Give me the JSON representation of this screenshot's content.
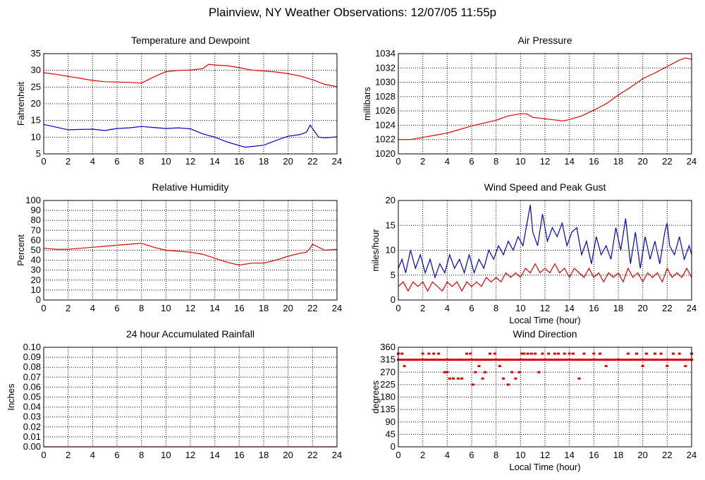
{
  "title": "Plainview, NY Weather Observations: 12/07/05 11:55p",
  "colors": {
    "red": "#e00000",
    "blue": "#0000c8"
  },
  "chart_data": [
    {
      "id": "temp",
      "type": "line",
      "title": "Temperature and Dewpoint",
      "xlabel": "",
      "ylabel": "Fahrenheit",
      "xlim": [
        0,
        24
      ],
      "ylim": [
        5,
        35
      ],
      "xticks": [
        "0",
        "2",
        "4",
        "6",
        "8",
        "10",
        "12",
        "14",
        "16",
        "18",
        "20",
        "22",
        "24"
      ],
      "yticks": [
        "35",
        "30",
        "25",
        "20",
        "15",
        "10",
        "5"
      ],
      "grid": true,
      "series": [
        {
          "color": "red",
          "x": [
            0,
            1,
            2,
            3,
            4,
            5,
            6,
            7,
            8,
            9,
            10,
            11,
            12,
            13,
            13.5,
            14,
            15,
            16,
            17,
            18,
            19,
            20,
            21,
            22,
            23,
            24
          ],
          "y": [
            29.3,
            28.8,
            28.2,
            27.6,
            27.0,
            26.6,
            26.5,
            26.4,
            26.2,
            28.0,
            29.6,
            30.0,
            30.1,
            30.5,
            31.8,
            31.6,
            31.4,
            30.8,
            30.1,
            29.8,
            29.5,
            29.0,
            28.3,
            27.2,
            25.8,
            25.1
          ]
        },
        {
          "color": "blue",
          "x": [
            0,
            1,
            2,
            3,
            4,
            5,
            6,
            7,
            8,
            9,
            10,
            11,
            12,
            13,
            14,
            15,
            16,
            16.5,
            17,
            18,
            19,
            20,
            21,
            21.5,
            21.8,
            22,
            22.5,
            23,
            24
          ],
          "y": [
            13.8,
            13.0,
            12.2,
            12.3,
            12.4,
            12.0,
            12.6,
            12.8,
            13.2,
            12.9,
            12.6,
            12.8,
            12.5,
            11.0,
            10.0,
            8.6,
            7.5,
            7.0,
            7.2,
            7.6,
            9.0,
            10.3,
            10.8,
            11.5,
            13.6,
            12.6,
            10.0,
            9.8,
            10.1
          ]
        }
      ]
    },
    {
      "id": "pressure",
      "type": "line",
      "title": "Air Pressure",
      "xlabel": "",
      "ylabel": "millibars",
      "xlim": [
        0,
        24
      ],
      "ylim": [
        1020,
        1034
      ],
      "xticks": [
        "0",
        "2",
        "4",
        "6",
        "8",
        "10",
        "12",
        "14",
        "16",
        "18",
        "20",
        "22",
        "24"
      ],
      "yticks": [
        "1034",
        "1032",
        "1030",
        "1028",
        "1026",
        "1024",
        "1022",
        "1020"
      ],
      "grid": true,
      "series": [
        {
          "color": "red",
          "x": [
            0,
            1,
            2,
            3,
            4,
            5,
            6,
            7,
            8,
            9,
            10,
            10.5,
            11,
            12,
            13,
            13.5,
            14,
            15,
            16,
            17,
            18,
            19,
            20,
            21,
            22,
            23,
            23.5,
            24
          ],
          "y": [
            1022.0,
            1022.0,
            1022.3,
            1022.6,
            1022.9,
            1023.4,
            1023.9,
            1024.3,
            1024.7,
            1025.3,
            1025.6,
            1025.6,
            1025.1,
            1024.9,
            1024.7,
            1024.6,
            1024.8,
            1025.3,
            1026.1,
            1027.0,
            1028.2,
            1029.3,
            1030.5,
            1031.3,
            1032.2,
            1033.1,
            1033.4,
            1033.2
          ]
        }
      ]
    },
    {
      "id": "humidity",
      "type": "line",
      "title": "Relative Humidity",
      "xlabel": "",
      "ylabel": "Percent",
      "xlim": [
        0,
        24
      ],
      "ylim": [
        0,
        100
      ],
      "xticks": [
        "0",
        "2",
        "4",
        "6",
        "8",
        "10",
        "12",
        "14",
        "16",
        "18",
        "20",
        "22",
        "24"
      ],
      "yticks": [
        "100",
        "90",
        "80",
        "70",
        "60",
        "50",
        "40",
        "30",
        "20",
        "10",
        "0"
      ],
      "grid": true,
      "series": [
        {
          "color": "red",
          "x": [
            0,
            1,
            2,
            3,
            4,
            5,
            6,
            7,
            8,
            9,
            10,
            11,
            12,
            13,
            14,
            15,
            16,
            17,
            18,
            19,
            20,
            21,
            21.5,
            21.8,
            22,
            23,
            24
          ],
          "y": [
            52,
            51,
            51,
            52,
            53,
            54,
            55,
            56,
            57,
            53,
            50,
            49,
            48,
            46,
            42,
            38,
            35,
            37,
            37,
            40,
            44,
            47,
            48,
            52,
            56,
            50,
            51
          ]
        }
      ]
    },
    {
      "id": "wind",
      "type": "line",
      "title": "Wind Speed and Peak Gust",
      "xlabel": "Local Time (hour)",
      "ylabel": "miles/hour",
      "xlim": [
        0,
        24
      ],
      "ylim": [
        0,
        22
      ],
      "xticks": [
        "0",
        "2",
        "4",
        "6",
        "8",
        "10",
        "12",
        "14",
        "16",
        "18",
        "20",
        "22",
        "24"
      ],
      "yticks": [
        "20",
        "15",
        "10",
        "5",
        "0"
      ],
      "grid": true,
      "series": [
        {
          "color": "blue",
          "x": [
            0,
            0.3,
            0.6,
            1,
            1.4,
            1.8,
            2.2,
            2.6,
            3,
            3.4,
            3.8,
            4.2,
            4.6,
            5,
            5.4,
            5.8,
            6.2,
            6.6,
            7,
            7.4,
            7.8,
            8.2,
            8.6,
            9,
            9.4,
            9.8,
            10.2,
            10.6,
            10.8,
            11,
            11.4,
            11.8,
            12.2,
            12.6,
            13,
            13.4,
            13.8,
            14.2,
            14.6,
            15,
            15.4,
            15.8,
            16.2,
            16.6,
            17,
            17.4,
            17.8,
            18.2,
            18.6,
            19,
            19.4,
            19.8,
            20.2,
            20.6,
            21,
            21.4,
            21.8,
            22,
            22.2,
            22.6,
            23,
            23.4,
            23.8,
            24
          ],
          "y": [
            7,
            9,
            6,
            11,
            7,
            10,
            6,
            9,
            5,
            8,
            6,
            10,
            7,
            9,
            6,
            10,
            6,
            9,
            7,
            11,
            9,
            12,
            10,
            13,
            11,
            14,
            12,
            18,
            21,
            15,
            12,
            19,
            13,
            16,
            14,
            17,
            12,
            15,
            16,
            10,
            13,
            8,
            14,
            10,
            12,
            9,
            16,
            11,
            18,
            8,
            15,
            7,
            14,
            9,
            13,
            8,
            15,
            17,
            12,
            10,
            14,
            9,
            12,
            10
          ]
        },
        {
          "color": "red",
          "x": [
            0,
            0.4,
            0.8,
            1.2,
            1.6,
            2,
            2.4,
            2.8,
            3.2,
            3.6,
            4,
            4.4,
            4.8,
            5.2,
            5.6,
            6,
            6.4,
            6.8,
            7.2,
            7.6,
            8,
            8.4,
            8.8,
            9.2,
            9.6,
            10,
            10.4,
            10.8,
            11.2,
            11.6,
            12,
            12.4,
            12.8,
            13.2,
            13.6,
            14,
            14.4,
            14.8,
            15.2,
            15.6,
            16,
            16.4,
            16.8,
            17.2,
            17.6,
            18,
            18.4,
            18.8,
            19.2,
            19.6,
            20,
            20.4,
            20.8,
            21.2,
            21.6,
            22,
            22.4,
            22.8,
            23.2,
            23.6,
            24
          ],
          "y": [
            3,
            4,
            2,
            4,
            3,
            4,
            2,
            4,
            3,
            2,
            4,
            3,
            4,
            2,
            4,
            3,
            4,
            3,
            5,
            4,
            5,
            4,
            6,
            5,
            6,
            5,
            7,
            6,
            8,
            6,
            7,
            6,
            8,
            6,
            7,
            5,
            7,
            6,
            5,
            7,
            5,
            6,
            4,
            6,
            5,
            6,
            4,
            7,
            5,
            6,
            4,
            6,
            5,
            6,
            4,
            7,
            5,
            6,
            5,
            7,
            5
          ]
        }
      ]
    },
    {
      "id": "rain",
      "type": "line",
      "title": "24 hour Accumulated Rainfall",
      "xlabel": "",
      "ylabel": "Inches",
      "xlim": [
        0,
        24
      ],
      "ylim": [
        0,
        0.1
      ],
      "xticks": [
        "0",
        "2",
        "4",
        "6",
        "8",
        "10",
        "12",
        "14",
        "16",
        "18",
        "20",
        "22",
        "24"
      ],
      "yticks": [
        "0.10",
        "0.09",
        "0.08",
        "0.07",
        "0.06",
        "0.05",
        "0.04",
        "0.03",
        "0.02",
        "0.01",
        "0.00"
      ],
      "grid": true,
      "series": [
        {
          "color": "red",
          "x": [
            0,
            24
          ],
          "y": [
            0,
            0
          ]
        }
      ]
    },
    {
      "id": "winddir",
      "type": "scatter",
      "title": "Wind Direction",
      "xlabel": "Local Time (hour)",
      "ylabel": "degrees",
      "xlim": [
        0,
        24
      ],
      "ylim": [
        0,
        360
      ],
      "xticks": [
        "0",
        "2",
        "4",
        "6",
        "8",
        "10",
        "12",
        "14",
        "16",
        "18",
        "20",
        "22",
        "24"
      ],
      "yticks": [
        "360",
        "315",
        "270",
        "225",
        "180",
        "135",
        "90",
        "45",
        "0"
      ],
      "grid": true,
      "series": [
        {
          "color": "red",
          "x": [
            0,
            0.3,
            0.5,
            2,
            2.5,
            2.9,
            3.3,
            3.8,
            4.0,
            4.2,
            4.5,
            4.9,
            5.2,
            5.6,
            5.9,
            6.1,
            6.3,
            6.6,
            6.9,
            7.1,
            7.5,
            7.9,
            8.3,
            8.6,
            9.0,
            9.3,
            9.6,
            9.9,
            10.1,
            10.3,
            10.6,
            10.9,
            11.2,
            11.5,
            11.8,
            12.3,
            12.8,
            13.1,
            13.6,
            14.0,
            14.3,
            14.8,
            15.2,
            16.0,
            16.5,
            17.0,
            18.8,
            19.5,
            20.0,
            20.3,
            21.0,
            21.5,
            22.0,
            22.5,
            23.0,
            23.5,
            24.0
          ],
          "y": [
            337,
            337,
            292,
            337,
            337,
            337,
            337,
            270,
            270,
            247,
            247,
            247,
            247,
            337,
            337,
            225,
            270,
            292,
            247,
            270,
            337,
            337,
            292,
            247,
            225,
            270,
            247,
            270,
            337,
            337,
            337,
            337,
            337,
            270,
            337,
            337,
            337,
            337,
            337,
            337,
            337,
            247,
            337,
            337,
            337,
            292,
            337,
            337,
            292,
            337,
            337,
            337,
            292,
            337,
            337,
            292,
            337
          ]
        },
        {
          "color": "red",
          "x": [
            0,
            1,
            2,
            3,
            4,
            5,
            6,
            7,
            8,
            9,
            10,
            11,
            12,
            13,
            14,
            15,
            16,
            17,
            18,
            19,
            20,
            21,
            22,
            23,
            24
          ],
          "y": [
            315,
            315,
            315,
            315,
            315,
            315,
            315,
            315,
            315,
            315,
            315,
            315,
            315,
            315,
            315,
            315,
            315,
            315,
            315,
            315,
            315,
            315,
            315,
            315,
            315
          ]
        }
      ]
    }
  ]
}
